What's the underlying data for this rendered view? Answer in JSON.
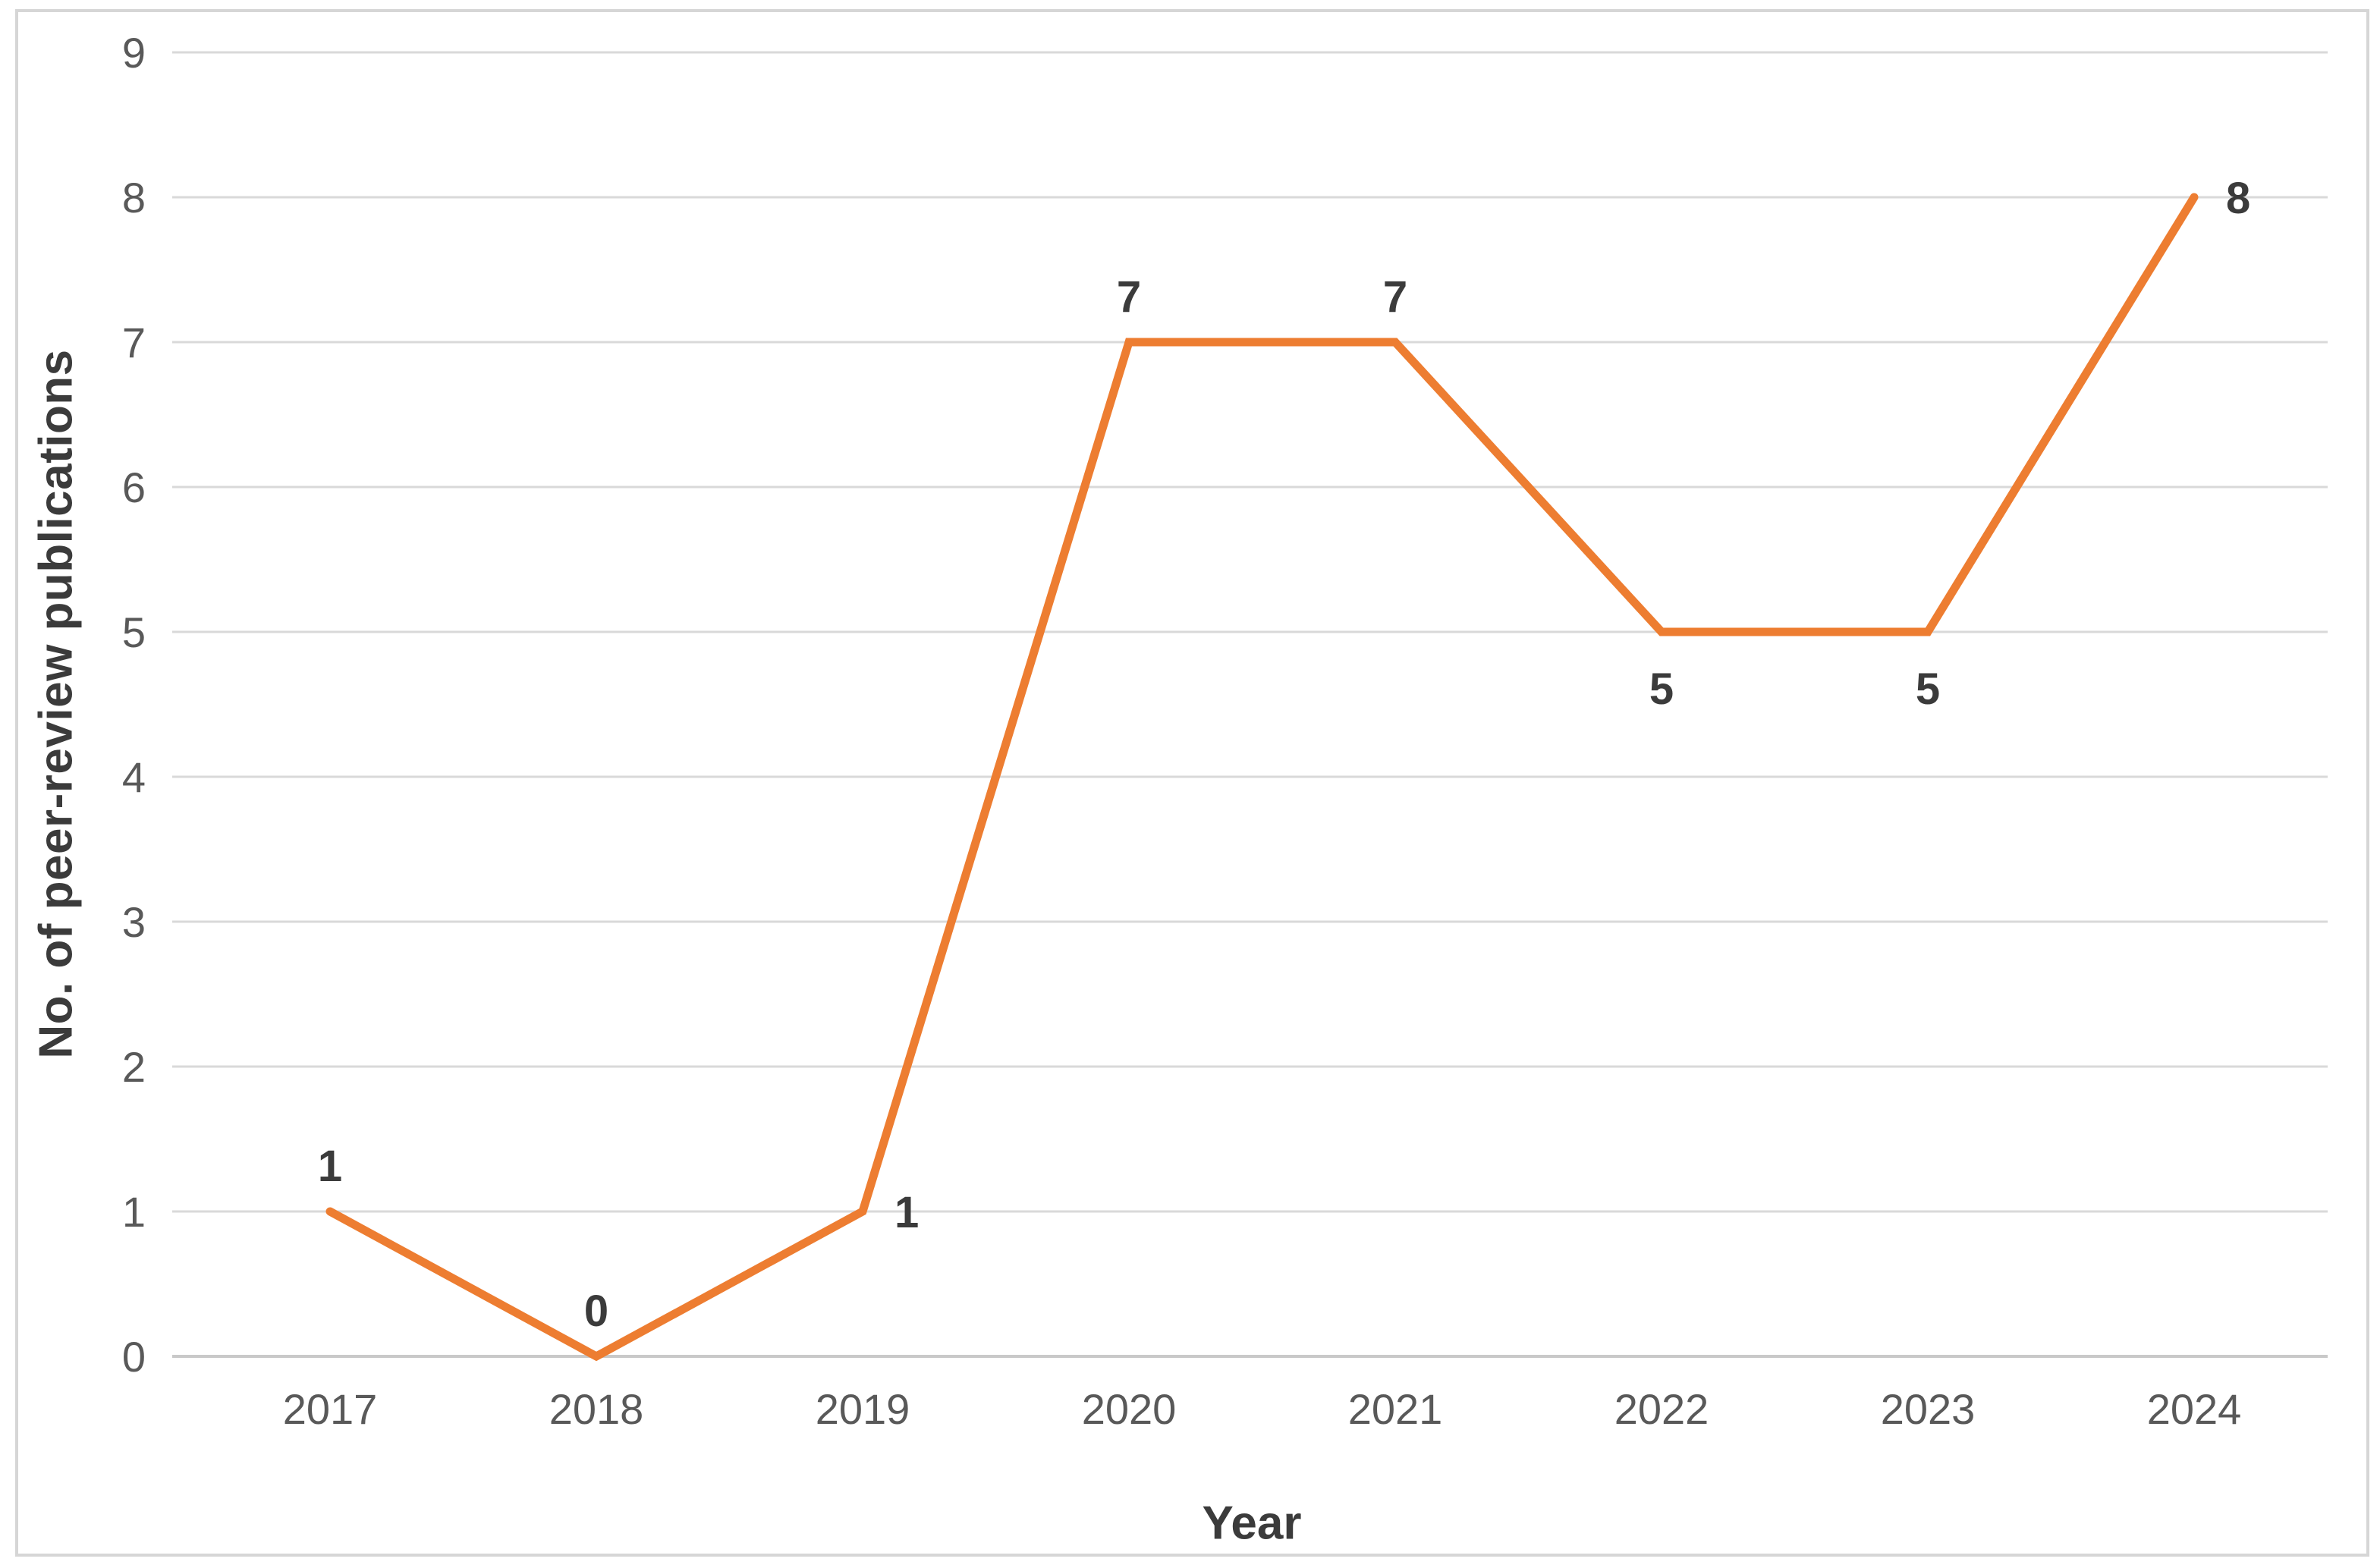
{
  "page": {
    "background": "#ffffff",
    "border_color": "#d6d6d6"
  },
  "chart_data": {
    "type": "line",
    "title": "",
    "categories": [
      "2017",
      "2018",
      "2019",
      "2020",
      "2021",
      "2022",
      "2023",
      "2024"
    ],
    "values": [
      1,
      0,
      1,
      7,
      7,
      5,
      5,
      8
    ],
    "series_name": "No. of peer-review publications",
    "xlabel": "Year",
    "ylabel": "No. of peer-review publications",
    "ylim": [
      0,
      9
    ],
    "ytick_interval": 1,
    "yticks": [
      "0",
      "1",
      "2",
      "3",
      "4",
      "5",
      "6",
      "7",
      "8",
      "9"
    ],
    "grid": "horizontal",
    "legend": "none",
    "markers": "none",
    "data_labels": [
      "1",
      "0",
      "1",
      "7",
      "7",
      "5",
      "5",
      "8"
    ],
    "data_label_placements": [
      "above",
      "above",
      "right",
      "above",
      "above",
      "below",
      "below",
      "right"
    ],
    "colors": {
      "line": "#ED7D31",
      "gridline": "#D9D9D9",
      "axis_line": "#C9C9C9",
      "tick_text": "#595959",
      "data_label_text": "#3B3B3B",
      "axis_title_text": "#3B3B3B"
    }
  }
}
